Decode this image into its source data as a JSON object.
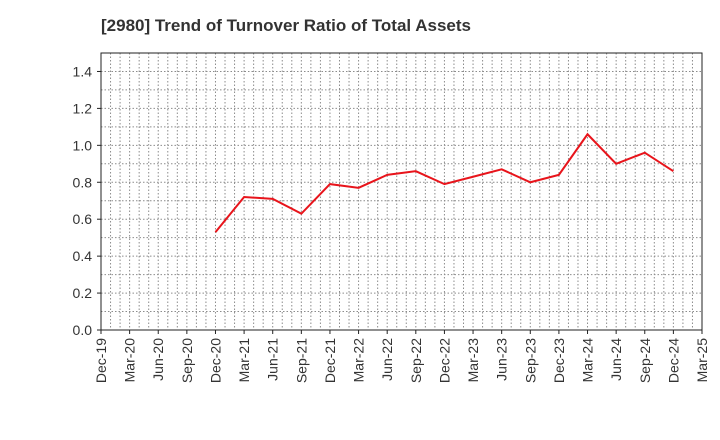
{
  "chart_data": {
    "type": "line",
    "title": "[2980]  Trend of Turnover Ratio of Total Assets",
    "xlabel": "",
    "ylabel": "",
    "ylim": [
      0,
      1.5
    ],
    "yticks": [
      "0.0",
      "0.2",
      "0.4",
      "0.6",
      "0.8",
      "1.0",
      "1.2",
      "1.4"
    ],
    "ytick_values": [
      0,
      0.2,
      0.4,
      0.6,
      0.8,
      1.0,
      1.2,
      1.4
    ],
    "xticks": [
      "Dec-19",
      "Mar-20",
      "Jun-20",
      "Sep-20",
      "Dec-20",
      "Mar-21",
      "Jun-21",
      "Sep-21",
      "Dec-21",
      "Mar-22",
      "Jun-22",
      "Sep-22",
      "Dec-22",
      "Mar-23",
      "Jun-23",
      "Sep-23",
      "Dec-23",
      "Mar-24",
      "Jun-24",
      "Sep-24",
      "Dec-24",
      "Mar-25"
    ],
    "grid": true,
    "line_color": "#e8141b",
    "series": [
      {
        "x": [
          "Dec-20",
          "Mar-21",
          "Jun-21",
          "Sep-21",
          "Dec-21",
          "Mar-22",
          "Jun-22",
          "Sep-22",
          "Dec-22",
          "Mar-23",
          "Jun-23",
          "Sep-23",
          "Dec-23",
          "Mar-24",
          "Jun-24",
          "Sep-24",
          "Dec-24"
        ],
        "values": [
          0.53,
          0.72,
          0.71,
          0.63,
          0.79,
          0.77,
          0.84,
          0.86,
          0.79,
          0.83,
          0.87,
          0.8,
          0.84,
          1.06,
          0.9,
          0.96,
          0.86
        ]
      }
    ]
  }
}
